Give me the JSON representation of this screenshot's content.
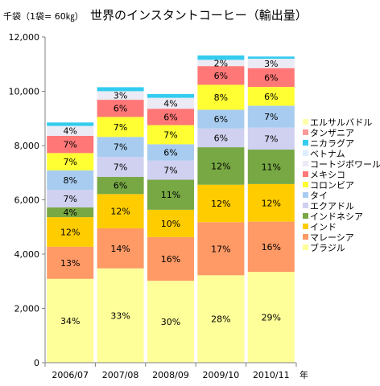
{
  "chart_data": {
    "type": "bar",
    "stacked": true,
    "title": "世界のインスタントコーヒー（輸出量）",
    "unit_label": "千袋（1袋= 60㎏）",
    "xlabel": "年",
    "ylim": [
      0,
      12000
    ],
    "yticks": [
      "0",
      "2,000",
      "4,000",
      "6,000",
      "8,000",
      "10,000",
      "12,000"
    ],
    "categories": [
      "2006/07",
      "2007/08",
      "2008/09",
      "2009/10",
      "2010/11"
    ],
    "totals": [
      8850,
      10150,
      9900,
      11320,
      11280
    ],
    "series": [
      {
        "name": "ブラジル",
        "color": "#ffff99",
        "percent": [
          34,
          33,
          30,
          28,
          29
        ],
        "labels": [
          "34%",
          "33%",
          "30%",
          "28%",
          "29%"
        ]
      },
      {
        "name": "マレーシア",
        "color": "#ff9966",
        "percent": [
          13,
          14,
          16,
          17,
          16
        ],
        "labels": [
          "13%",
          "14%",
          "16%",
          "17%",
          "16%"
        ]
      },
      {
        "name": "インド",
        "color": "#ffcc00",
        "percent": [
          12,
          12,
          10,
          12,
          12
        ],
        "labels": [
          "12%",
          "12%",
          "10%",
          "12%",
          "12%"
        ]
      },
      {
        "name": "インドネシア",
        "color": "#77a844",
        "percent": [
          4,
          6,
          11,
          12,
          11
        ],
        "labels": [
          "4%",
          "6%",
          "11%",
          "12%",
          "11%"
        ]
      },
      {
        "name": "エクアドル",
        "color": "#d0d0f0",
        "percent": [
          7,
          7,
          7,
          6,
          7
        ],
        "labels": [
          "7%",
          "7%",
          "7%",
          "6%",
          "7%"
        ]
      },
      {
        "name": "タイ",
        "color": "#a8ccf0",
        "percent": [
          8,
          7,
          6,
          6,
          7
        ],
        "labels": [
          "8%",
          "7%",
          "6%",
          "6%",
          "7%"
        ]
      },
      {
        "name": "コロンビア",
        "color": "#ffff33",
        "percent": [
          7,
          7,
          7,
          8,
          6
        ],
        "labels": [
          "7%",
          "7%",
          "7%",
          "8%",
          "6%"
        ]
      },
      {
        "name": "メキシコ",
        "color": "#ff7777",
        "percent": [
          7,
          6,
          6,
          6,
          6
        ],
        "labels": [
          "7%",
          "6%",
          "6%",
          "6%",
          "6%"
        ]
      },
      {
        "name": "コートジボワール",
        "color": "#ebebf5",
        "percent": [
          4,
          3,
          4,
          2,
          3
        ],
        "labels": [
          "4%",
          "3%",
          "4%",
          "2%",
          "3%"
        ]
      },
      {
        "name": "ベトナム",
        "color": "#ddeeff",
        "percent": [
          0,
          0,
          0,
          0,
          0
        ],
        "labels": [
          "",
          "",
          "",
          "",
          ""
        ]
      },
      {
        "name": "ニカラグア",
        "color": "#33ccee",
        "percent": [
          1.4,
          1.4,
          1.4,
          1.4,
          0.7
        ],
        "labels": [
          "",
          "",
          "",
          "",
          ""
        ]
      },
      {
        "name": "タンザニア",
        "color": "#ff9999",
        "percent": [
          0,
          0,
          0,
          0,
          0
        ],
        "labels": [
          "",
          "",
          "",
          "",
          ""
        ]
      },
      {
        "name": "エルサルバドル",
        "color": "#ffffaa",
        "percent": [
          0,
          0,
          0,
          0,
          0
        ],
        "labels": [
          "",
          "",
          "",
          "",
          ""
        ]
      }
    ],
    "legend_order": [
      "エルサルバドル",
      "タンザニア",
      "ニカラグア",
      "ベトナム",
      "コートジボワール",
      "メキシコ",
      "コロンビア",
      "タイ",
      "エクアドル",
      "インドネシア",
      "インド",
      "マレーシア",
      "ブラジル"
    ],
    "grid": false,
    "legend_position": "right"
  }
}
